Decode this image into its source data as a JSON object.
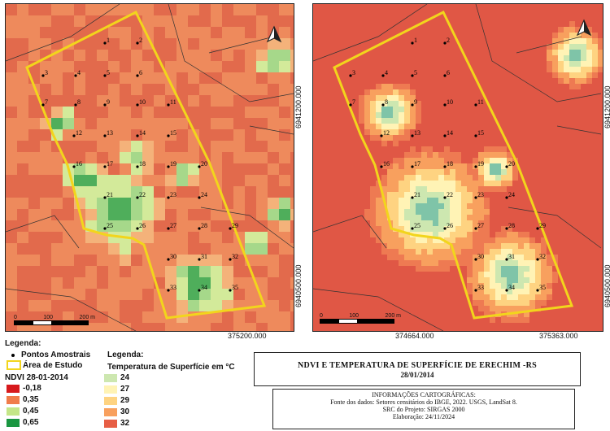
{
  "maps": {
    "ndvi": {
      "x_tick": "375200.000",
      "y_ticks": [
        "6941200.000",
        "6940500.000"
      ],
      "scale_labels": [
        "0",
        "100",
        "200 m"
      ]
    },
    "temp": {
      "x_ticks": [
        "374664.000",
        "375363.000"
      ],
      "y_ticks": [
        "6941200.000",
        "6940500.000"
      ],
      "scale_labels": [
        "0",
        "100",
        "200 m"
      ]
    }
  },
  "points": [
    "1",
    "2",
    "3",
    "4",
    "5",
    "6",
    "7",
    "8",
    "9",
    "10",
    "11",
    "12",
    "13",
    "14",
    "15",
    "16",
    "17",
    "18",
    "19",
    "20",
    "21",
    "22",
    "23",
    "24",
    "25",
    "26",
    "27",
    "28",
    "29",
    "30",
    "31",
    "32",
    "33",
    "34",
    "35"
  ],
  "legend_left": {
    "title": "Legenda:",
    "points_label": "Pontos Amostrais",
    "area_label": "Área de Estudo",
    "ndvi_title": "NDVI  28-01-2014",
    "ndvi_items": [
      {
        "label": "-0,18",
        "color": "#d7191c"
      },
      {
        "label": "0,35",
        "color": "#f07c4a"
      },
      {
        "label": "0,45",
        "color": "#c4e687"
      },
      {
        "label": "0,65",
        "color": "#1a9641"
      }
    ]
  },
  "legend_right": {
    "title": "Legenda:",
    "temp_title": "Temperatura de Superfície em °C",
    "temp_items": [
      {
        "label": "24",
        "color": "#cde7b0"
      },
      {
        "label": "27",
        "color": "#fff3b5"
      },
      {
        "label": "29",
        "color": "#fed381"
      },
      {
        "label": "30",
        "color": "#f8a05e"
      },
      {
        "label": "32",
        "color": "#e75e45"
      }
    ]
  },
  "title": {
    "line1": "NDVI  E TEMPERATURA DE SUPERFÍCIE DE ERECHIM -RS",
    "line2": "28/01/2014"
  },
  "info": {
    "heading": "INFORMAÇÕES CARTOGRÁFICAS:",
    "source": "Fonte dos dados: Setores censitários do IBGE, 2022.  USGS, LandSat 8.",
    "src": "SRC do Projeto: SIRGAS 2000",
    "credit": "Elaboração: 24/11/2024"
  },
  "colors": {
    "boundary": "#f2d51c",
    "sector_lines": "#333333"
  }
}
